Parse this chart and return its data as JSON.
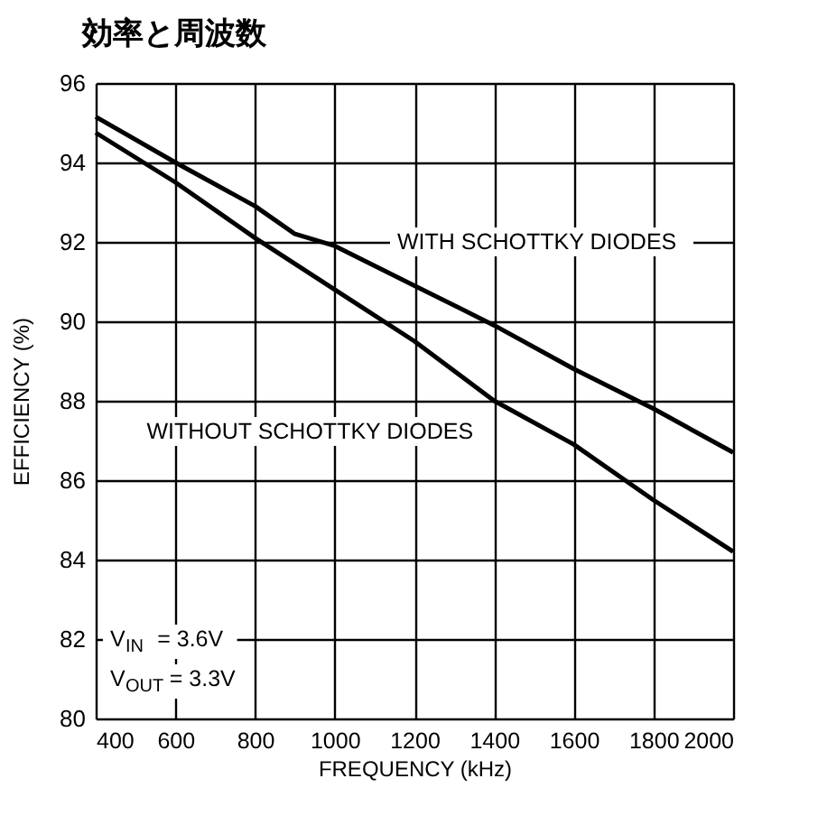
{
  "chart_data": {
    "type": "line",
    "title": "効率と周波数",
    "xlabel": "FREQUENCY (kHz)",
    "ylabel": "EFFICIENCY (%)",
    "xlim": [
      400,
      2000
    ],
    "xticks": [
      400,
      600,
      800,
      1000,
      1200,
      1400,
      1600,
      1800,
      2000
    ],
    "ylim": [
      80,
      96
    ],
    "yticks": [
      80,
      82,
      84,
      86,
      88,
      90,
      92,
      94,
      96
    ],
    "grid": true,
    "line_style": "solid",
    "marker": "none",
    "series": [
      {
        "color": "#000000",
        "x": [
          400,
          600,
          800,
          900,
          1000,
          1200,
          1400,
          1600,
          1800,
          2000
        ],
        "values": [
          95.15,
          94.0,
          92.9,
          92.2,
          91.9,
          90.9,
          89.9,
          88.8,
          87.8,
          86.7
        ]
      },
      {
        "color": "#000000",
        "x": [
          400,
          600,
          800,
          1000,
          1200,
          1400,
          1600,
          1800,
          2000
        ],
        "values": [
          94.75,
          93.5,
          92.1,
          90.8,
          89.5,
          88.0,
          86.9,
          85.5,
          84.2
        ]
      }
    ],
    "annotations": [
      "WITH SCHOTTKY DIODES",
      "WITHOUT SCHOTTKY DIODES",
      "V$_{IN}$ = 3.6V",
      "V$_{OUT}$ = 3.3V"
    ]
  }
}
